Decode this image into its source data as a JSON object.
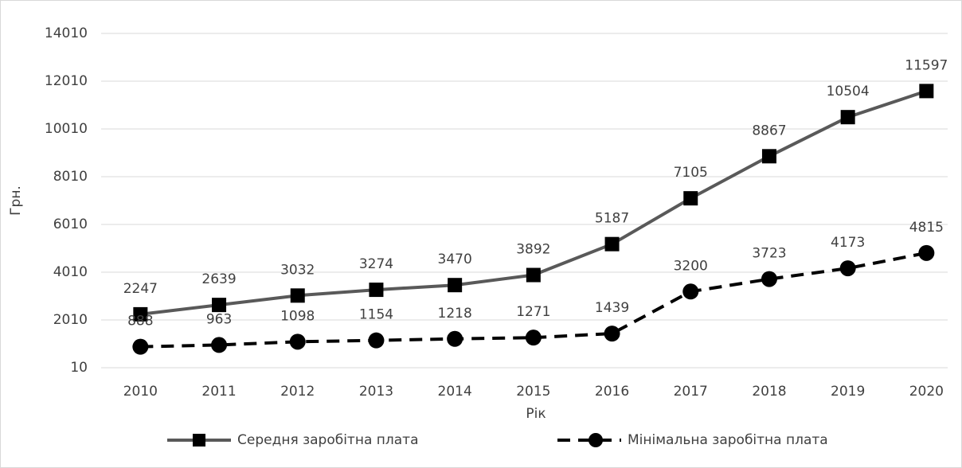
{
  "chart_data": {
    "type": "line",
    "x_label": "Рік",
    "y_label": "Грн.",
    "categories": [
      "2010",
      "2011",
      "2012",
      "2013",
      "2014",
      "2015",
      "2016",
      "2017",
      "2018",
      "2019",
      "2020"
    ],
    "series": [
      {
        "name": "Середня заробітна плата",
        "color": "#595959",
        "marker": "square",
        "dash": "solid",
        "values": [
          2247,
          2639,
          3032,
          3274,
          3470,
          3892,
          5187,
          7105,
          8867,
          10504,
          11597
        ]
      },
      {
        "name": "Мінімальна заробітна плата",
        "color": "#000000",
        "marker": "circle",
        "dash": "dashed",
        "values": [
          888,
          963,
          1098,
          1154,
          1218,
          1271,
          1439,
          3200,
          3723,
          4173,
          4815
        ]
      }
    ],
    "ylim": [
      10,
      14010
    ],
    "yticks": [
      10,
      2010,
      4010,
      6010,
      8010,
      10010,
      12010,
      14010
    ],
    "grid": true,
    "legend": "bottom"
  }
}
